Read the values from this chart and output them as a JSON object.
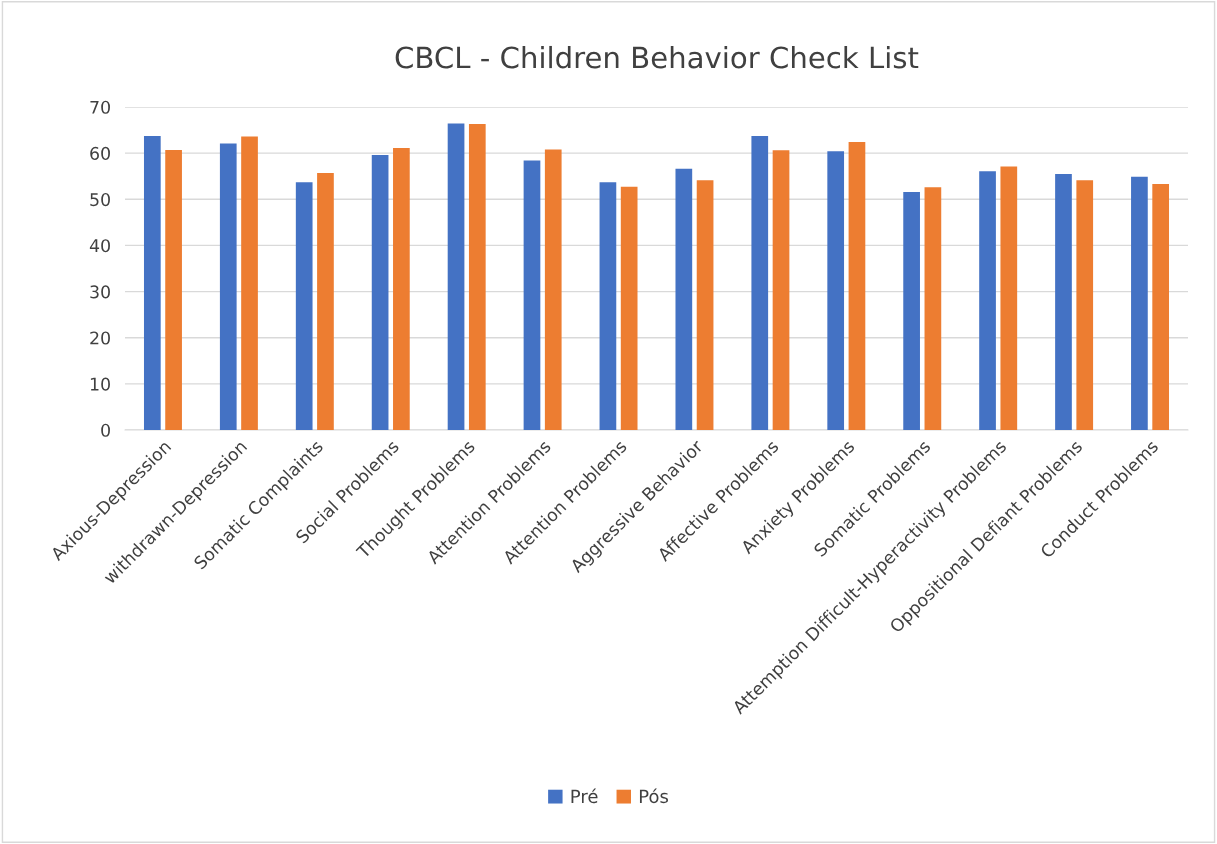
{
  "chart_data": {
    "type": "bar",
    "title": "CBCL - Children Behavior Check List",
    "categories": [
      "Axious-Depression",
      "withdrawn-Depression",
      "Somatic Complaints",
      "Social Problems",
      "Thought Problems",
      "Attention Problems",
      "Attention Problems",
      "Aggressive Behavior",
      "Affective Problems",
      "Anxiety Problems",
      "Somatic Problems",
      "Attemption Difficult-Hyperactivity Problems",
      "Oppositional Defiant Problems",
      "Conduct Problems"
    ],
    "series": [
      {
        "name": "Pré",
        "color": "#4472c4",
        "values": [
          63.7,
          62.1,
          53.7,
          59.6,
          66.4,
          58.4,
          53.7,
          56.6,
          63.7,
          60.4,
          51.6,
          56.1,
          55.5,
          54.9
        ]
      },
      {
        "name": "Pós",
        "color": "#ed7d31",
        "values": [
          60.7,
          63.6,
          55.7,
          61.1,
          66.3,
          60.8,
          52.7,
          54.1,
          60.6,
          62.4,
          52.6,
          57.1,
          54.1,
          53.3
        ]
      }
    ],
    "ylim": [
      0,
      70
    ],
    "yticks": [
      0,
      10,
      20,
      30,
      40,
      50,
      60,
      70
    ],
    "grid": "y",
    "legend": "bottom"
  }
}
